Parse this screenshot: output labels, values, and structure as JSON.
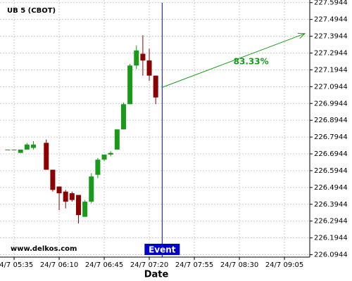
{
  "chart_data": {
    "type": "candlestick",
    "title": "UB 5 (CBOT)",
    "x_label": "Date",
    "watermark": "www.delkos.com",
    "categories": [
      null,
      "24/7 05:35",
      null,
      null,
      null,
      null,
      null,
      null,
      "24/7 06:10",
      null,
      null,
      null,
      null,
      null,
      null,
      "24/7 06:45",
      null,
      null,
      null,
      null,
      null,
      null,
      "24/7 07:20",
      null,
      null,
      null,
      null,
      null,
      null,
      "24/7 07:55",
      null,
      null,
      null,
      null,
      null,
      null,
      "24/7 08:30",
      null,
      null,
      null,
      null,
      null,
      null,
      "24/7 09:05",
      null,
      null,
      null,
      null
    ],
    "open": [
      226.72,
      226.72,
      226.7,
      226.72,
      226.73,
      null,
      226.76,
      226.6,
      226.5,
      226.47,
      226.46,
      226.45,
      226.32,
      226.41,
      226.57,
      226.66,
      226.69,
      226.72,
      226.84,
      226.99,
      227.22,
      227.29,
      227.25,
      227.16,
      null,
      null,
      null,
      null,
      null,
      null,
      null,
      null,
      null,
      null,
      null,
      null,
      null,
      null,
      null,
      null,
      null,
      null,
      null,
      null,
      null,
      null,
      null,
      null
    ],
    "high": [
      226.72,
      226.72,
      226.72,
      226.76,
      226.77,
      null,
      226.78,
      226.6,
      226.5,
      226.48,
      226.47,
      226.45,
      226.42,
      226.58,
      226.67,
      226.69,
      226.71,
      226.84,
      227.0,
      227.23,
      227.34,
      227.4,
      227.32,
      227.16,
      null,
      null,
      null,
      null,
      null,
      null,
      null,
      null,
      null,
      null,
      null,
      null,
      null,
      null,
      null,
      null,
      null,
      null,
      null,
      null,
      null,
      null,
      null,
      null
    ],
    "low": [
      226.72,
      226.72,
      226.7,
      226.72,
      226.72,
      null,
      226.6,
      226.47,
      226.36,
      226.37,
      226.41,
      226.28,
      226.32,
      226.4,
      226.55,
      226.65,
      226.68,
      226.72,
      226.84,
      226.99,
      227.2,
      227.16,
      227.13,
      226.99,
      null,
      null,
      null,
      null,
      null,
      null,
      null,
      null,
      null,
      null,
      null,
      null,
      null,
      null,
      null,
      null,
      null,
      null,
      null,
      null,
      null,
      null,
      null,
      null
    ],
    "close": [
      226.72,
      226.72,
      226.72,
      226.75,
      226.75,
      null,
      226.6,
      226.48,
      226.46,
      226.41,
      226.42,
      226.33,
      226.41,
      226.56,
      226.66,
      226.69,
      226.7,
      226.84,
      226.99,
      227.22,
      227.31,
      227.25,
      227.16,
      227.03,
      null,
      null,
      null,
      null,
      null,
      null,
      null,
      null,
      null,
      null,
      null,
      null,
      null,
      null,
      null,
      null,
      null,
      null,
      null,
      null,
      null,
      null,
      null,
      null
    ],
    "up_color": "#1a9a1a",
    "down_color": "#8b0000",
    "ylim": [
      226.08,
      227.61
    ],
    "yticks": [
      226.0944,
      226.1944,
      226.2944,
      226.3944,
      226.4944,
      226.5944,
      226.6944,
      226.7944,
      226.8944,
      226.9944,
      227.0944,
      227.1944,
      227.2944,
      227.3944,
      227.4944,
      227.5944
    ],
    "grid": true,
    "event": {
      "label": "Event",
      "color": "#0000cc"
    },
    "forecast": {
      "label": "83.33%",
      "values": [
        227.09,
        227.41
      ],
      "color": "#1a9a1a"
    }
  }
}
